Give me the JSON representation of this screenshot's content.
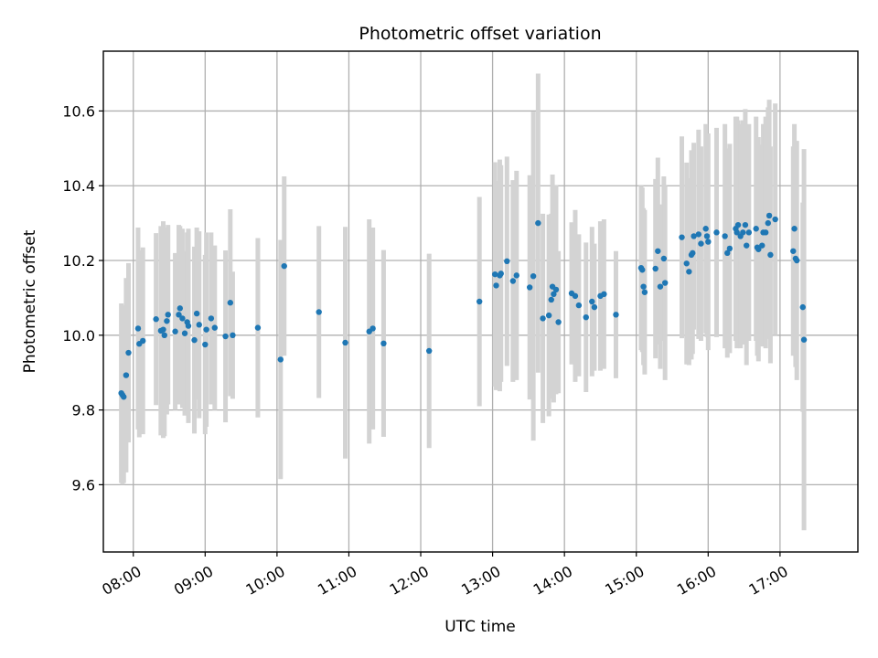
{
  "chart_data": {
    "type": "scatter",
    "title": "Photometric offset variation",
    "xlabel": "UTC time",
    "ylabel": "Photometric offset",
    "x_unit": "hours UTC",
    "xlim": [
      "07:35",
      "18:05"
    ],
    "ylim": [
      9.42,
      10.76
    ],
    "x_ticks": [
      "08:00",
      "09:00",
      "10:00",
      "11:00",
      "12:00",
      "13:00",
      "14:00",
      "15:00",
      "16:00",
      "17:00"
    ],
    "y_ticks": [
      9.6,
      9.8,
      10.0,
      10.2,
      10.4,
      10.6
    ],
    "y_tick_labels": [
      "9.6",
      "9.8",
      "10.0",
      "10.2",
      "10.4",
      "10.6"
    ],
    "grid": true,
    "colors": {
      "point": "#1f77b4",
      "error_bar": "#d3d3d3"
    },
    "points": [
      {
        "t": "07:50",
        "y": 9.845,
        "err": 0.24
      },
      {
        "t": "07:51",
        "y": 9.84,
        "err": 0.24
      },
      {
        "t": "07:52",
        "y": 9.835,
        "err": 0.23
      },
      {
        "t": "07:54",
        "y": 9.893,
        "err": 0.26
      },
      {
        "t": "07:56",
        "y": 9.953,
        "err": 0.24
      },
      {
        "t": "08:04",
        "y": 10.018,
        "err": 0.27
      },
      {
        "t": "08:05",
        "y": 9.977,
        "err": 0.25
      },
      {
        "t": "08:08",
        "y": 9.985,
        "err": 0.25
      },
      {
        "t": "08:19",
        "y": 10.043,
        "err": 0.23
      },
      {
        "t": "08:23",
        "y": 10.012,
        "err": 0.28
      },
      {
        "t": "08:25",
        "y": 10.015,
        "err": 0.29
      },
      {
        "t": "08:26",
        "y": 10.0,
        "err": 0.27
      },
      {
        "t": "08:28",
        "y": 10.038,
        "err": 0.25
      },
      {
        "t": "08:29",
        "y": 10.055,
        "err": 0.24
      },
      {
        "t": "08:35",
        "y": 10.01,
        "err": 0.21
      },
      {
        "t": "08:38",
        "y": 10.055,
        "err": 0.24
      },
      {
        "t": "08:39",
        "y": 10.072,
        "err": 0.22
      },
      {
        "t": "08:41",
        "y": 10.045,
        "err": 0.24
      },
      {
        "t": "08:43",
        "y": 10.005,
        "err": 0.22
      },
      {
        "t": "08:45",
        "y": 10.035,
        "err": 0.24
      },
      {
        "t": "08:46",
        "y": 10.025,
        "err": 0.26
      },
      {
        "t": "08:51",
        "y": 9.987,
        "err": 0.25
      },
      {
        "t": "08:53",
        "y": 10.058,
        "err": 0.23
      },
      {
        "t": "08:55",
        "y": 10.028,
        "err": 0.25
      },
      {
        "t": "09:00",
        "y": 9.975,
        "err": 0.24
      },
      {
        "t": "09:01",
        "y": 10.015,
        "err": 0.26
      },
      {
        "t": "09:05",
        "y": 10.045,
        "err": 0.23
      },
      {
        "t": "09:08",
        "y": 10.02,
        "err": 0.22
      },
      {
        "t": "09:17",
        "y": 9.997,
        "err": 0.23
      },
      {
        "t": "09:21",
        "y": 10.087,
        "err": 0.25
      },
      {
        "t": "09:23",
        "y": 10.0,
        "err": 0.17
      },
      {
        "t": "09:44",
        "y": 10.02,
        "err": 0.24
      },
      {
        "t": "10:03",
        "y": 9.935,
        "err": 0.32
      },
      {
        "t": "10:06",
        "y": 10.185,
        "err": 0.24
      },
      {
        "t": "10:35",
        "y": 10.062,
        "err": 0.23
      },
      {
        "t": "10:57",
        "y": 9.98,
        "err": 0.31
      },
      {
        "t": "11:17",
        "y": 10.01,
        "err": 0.3
      },
      {
        "t": "11:20",
        "y": 10.018,
        "err": 0.27
      },
      {
        "t": "11:29",
        "y": 9.978,
        "err": 0.25
      },
      {
        "t": "12:07",
        "y": 9.958,
        "err": 0.26
      },
      {
        "t": "12:49",
        "y": 10.09,
        "err": 0.28
      },
      {
        "t": "13:02",
        "y": 10.163,
        "err": 0.3
      },
      {
        "t": "13:03",
        "y": 10.133,
        "err": 0.28
      },
      {
        "t": "13:06",
        "y": 10.16,
        "err": 0.31
      },
      {
        "t": "13:07",
        "y": 10.165,
        "err": 0.29
      },
      {
        "t": "13:12",
        "y": 10.198,
        "err": 0.28
      },
      {
        "t": "13:17",
        "y": 10.145,
        "err": 0.27
      },
      {
        "t": "13:20",
        "y": 10.16,
        "err": 0.28
      },
      {
        "t": "13:31",
        "y": 10.128,
        "err": 0.3
      },
      {
        "t": "13:34",
        "y": 10.158,
        "err": 0.44
      },
      {
        "t": "13:38",
        "y": 10.3,
        "err": 0.4
      },
      {
        "t": "13:42",
        "y": 10.045,
        "err": 0.28
      },
      {
        "t": "13:47",
        "y": 10.053,
        "err": 0.27
      },
      {
        "t": "13:49",
        "y": 10.095,
        "err": 0.23
      },
      {
        "t": "13:50",
        "y": 10.13,
        "err": 0.3
      },
      {
        "t": "13:51",
        "y": 10.11,
        "err": 0.29
      },
      {
        "t": "13:53",
        "y": 10.122,
        "err": 0.28
      },
      {
        "t": "13:55",
        "y": 10.035,
        "err": 0.19
      },
      {
        "t": "14:06",
        "y": 10.112,
        "err": 0.19
      },
      {
        "t": "14:09",
        "y": 10.105,
        "err": 0.23
      },
      {
        "t": "14:12",
        "y": 10.08,
        "err": 0.19
      },
      {
        "t": "14:18",
        "y": 10.048,
        "err": 0.2
      },
      {
        "t": "14:23",
        "y": 10.09,
        "err": 0.2
      },
      {
        "t": "14:25",
        "y": 10.075,
        "err": 0.17
      },
      {
        "t": "14:30",
        "y": 10.105,
        "err": 0.2
      },
      {
        "t": "14:33",
        "y": 10.11,
        "err": 0.2
      },
      {
        "t": "14:43",
        "y": 10.055,
        "err": 0.17
      },
      {
        "t": "15:04",
        "y": 10.18,
        "err": 0.22
      },
      {
        "t": "15:05",
        "y": 10.175,
        "err": 0.22
      },
      {
        "t": "15:06",
        "y": 10.13,
        "err": 0.21
      },
      {
        "t": "15:07",
        "y": 10.115,
        "err": 0.22
      },
      {
        "t": "15:16",
        "y": 10.178,
        "err": 0.24
      },
      {
        "t": "15:18",
        "y": 10.225,
        "err": 0.25
      },
      {
        "t": "15:20",
        "y": 10.13,
        "err": 0.22
      },
      {
        "t": "15:23",
        "y": 10.205,
        "err": 0.22
      },
      {
        "t": "15:24",
        "y": 10.14,
        "err": 0.26
      },
      {
        "t": "15:38",
        "y": 10.262,
        "err": 0.27
      },
      {
        "t": "15:42",
        "y": 10.192,
        "err": 0.27
      },
      {
        "t": "15:44",
        "y": 10.17,
        "err": 0.25
      },
      {
        "t": "15:46",
        "y": 10.215,
        "err": 0.28
      },
      {
        "t": "15:47",
        "y": 10.22,
        "err": 0.27
      },
      {
        "t": "15:48",
        "y": 10.265,
        "err": 0.25
      },
      {
        "t": "15:52",
        "y": 10.27,
        "err": 0.28
      },
      {
        "t": "15:54",
        "y": 10.245,
        "err": 0.26
      },
      {
        "t": "15:58",
        "y": 10.285,
        "err": 0.28
      },
      {
        "t": "15:59",
        "y": 10.265,
        "err": 0.27
      },
      {
        "t": "16:00",
        "y": 10.25,
        "err": 0.29
      },
      {
        "t": "16:07",
        "y": 10.275,
        "err": 0.28
      },
      {
        "t": "16:14",
        "y": 10.265,
        "err": 0.3
      },
      {
        "t": "16:16",
        "y": 10.22,
        "err": 0.28
      },
      {
        "t": "16:18",
        "y": 10.232,
        "err": 0.28
      },
      {
        "t": "16:23",
        "y": 10.285,
        "err": 0.3
      },
      {
        "t": "16:24",
        "y": 10.275,
        "err": 0.31
      },
      {
        "t": "16:25",
        "y": 10.295,
        "err": 0.28
      },
      {
        "t": "16:27",
        "y": 10.265,
        "err": 0.3
      },
      {
        "t": "16:29",
        "y": 10.275,
        "err": 0.3
      },
      {
        "t": "16:31",
        "y": 10.295,
        "err": 0.31
      },
      {
        "t": "16:32",
        "y": 10.24,
        "err": 0.32
      },
      {
        "t": "16:34",
        "y": 10.275,
        "err": 0.29
      },
      {
        "t": "16:40",
        "y": 10.285,
        "err": 0.3
      },
      {
        "t": "16:41",
        "y": 10.235,
        "err": 0.29
      },
      {
        "t": "16:42",
        "y": 10.23,
        "err": 0.3
      },
      {
        "t": "16:45",
        "y": 10.24,
        "err": 0.27
      },
      {
        "t": "16:46",
        "y": 10.275,
        "err": 0.29
      },
      {
        "t": "16:48",
        "y": 10.275,
        "err": 0.31
      },
      {
        "t": "16:50",
        "y": 10.3,
        "err": 0.31
      },
      {
        "t": "16:51",
        "y": 10.32,
        "err": 0.31
      },
      {
        "t": "16:52",
        "y": 10.215,
        "err": 0.29
      },
      {
        "t": "16:56",
        "y": 10.31,
        "err": 0.31
      },
      {
        "t": "17:11",
        "y": 10.225,
        "err": 0.28
      },
      {
        "t": "17:12",
        "y": 10.285,
        "err": 0.28
      },
      {
        "t": "17:13",
        "y": 10.205,
        "err": 0.29
      },
      {
        "t": "17:14",
        "y": 10.2,
        "err": 0.32
      },
      {
        "t": "17:19",
        "y": 10.075,
        "err": 0.28
      },
      {
        "t": "17:20",
        "y": 9.988,
        "err": 0.51
      }
    ]
  }
}
